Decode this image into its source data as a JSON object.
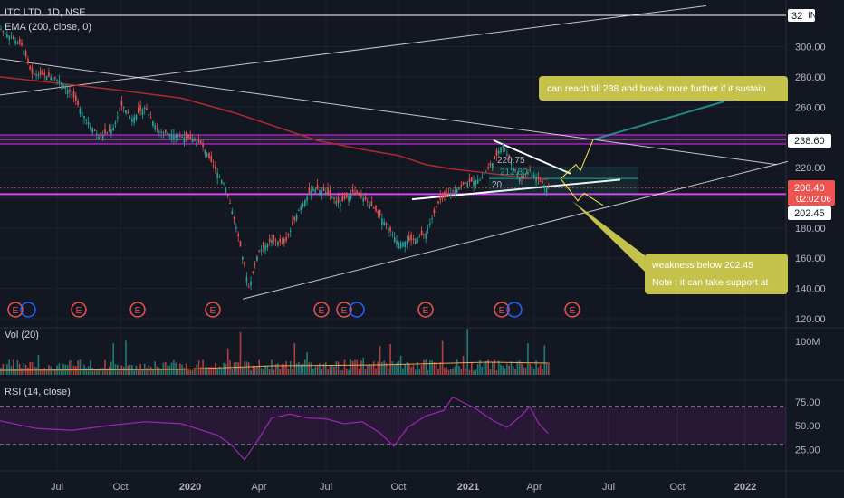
{
  "header": {
    "symbol": "ITC LTD, 1D, NSE",
    "indicator": "EMA (200, close, 0)",
    "currency": "INR"
  },
  "panes": {
    "volume_label": "Vol (20)",
    "volume_tick": "100M",
    "rsi_label": "RSI (14, close)"
  },
  "price_badges": {
    "top_clipped": "32",
    "resistance": "238.60",
    "last": "206.40",
    "countdown": "02:02:06",
    "support": "202.45"
  },
  "annotations": {
    "bullish_note": "can reach till 238 and break more further if it sustain",
    "bearish_line1": "weakness below 202.45",
    "bearish_line2": "Note : it can take support at",
    "box_high": "220.75",
    "box_mid": "212.80",
    "box_low": "20"
  },
  "colors": {
    "background": "#131722",
    "grid": "#1e2230",
    "candle_up": "#26a69a",
    "candle_down": "#ef5350",
    "ema": "#b2292e",
    "resistance_band": "#9c27b0",
    "support_line": "#e040fb",
    "note_box": "#c4c24a",
    "rsi": "#9c27b0",
    "arrow": "#ffeb3b"
  },
  "chart_data": [
    {
      "type": "candlestick",
      "title": "ITC LTD, 1D, NSE",
      "x_ticks": [
        "Jul",
        "Oct",
        "2020",
        "Apr",
        "Jul",
        "Oct",
        "2021",
        "Apr",
        "Jul",
        "Oct",
        "2022"
      ],
      "y_ticks": [
        120,
        140,
        160,
        180,
        200,
        220,
        240,
        260,
        280,
        300
      ],
      "ylim": [
        113,
        327
      ],
      "series": [
        {
          "name": "EMA (200, close, 0)",
          "points": [
            [
              0,
              280
            ],
            [
              60,
              276
            ],
            [
              120,
              272
            ],
            [
              200,
              266
            ],
            [
              260,
              256
            ],
            [
              310,
              246
            ],
            [
              350,
              238
            ],
            [
              400,
              232
            ],
            [
              440,
              228
            ],
            [
              470,
              222
            ],
            [
              500,
              219
            ],
            [
              530,
              217
            ],
            [
              570,
              214
            ],
            [
              605,
              212
            ]
          ]
        }
      ],
      "price_path": [
        [
          0,
          312
        ],
        [
          15,
          305
        ],
        [
          25,
          300
        ],
        [
          35,
          282
        ],
        [
          50,
          281
        ],
        [
          65,
          278
        ],
        [
          80,
          268
        ],
        [
          95,
          252
        ],
        [
          110,
          240
        ],
        [
          125,
          246
        ],
        [
          135,
          262
        ],
        [
          145,
          252
        ],
        [
          160,
          260
        ],
        [
          175,
          244
        ],
        [
          190,
          242
        ],
        [
          205,
          240
        ],
        [
          222,
          236
        ],
        [
          235,
          222
        ],
        [
          250,
          206
        ],
        [
          262,
          178
        ],
        [
          275,
          140
        ],
        [
          285,
          164
        ],
        [
          300,
          172
        ],
        [
          315,
          170
        ],
        [
          330,
          192
        ],
        [
          345,
          206
        ],
        [
          360,
          204
        ],
        [
          375,
          196
        ],
        [
          390,
          204
        ],
        [
          405,
          198
        ],
        [
          420,
          188
        ],
        [
          440,
          170
        ],
        [
          455,
          172
        ],
        [
          470,
          176
        ],
        [
          485,
          198
        ],
        [
          500,
          204
        ],
        [
          515,
          210
        ],
        [
          530,
          212
        ],
        [
          545,
          224
        ],
        [
          555,
          236
        ],
        [
          565,
          222
        ],
        [
          575,
          212
        ],
        [
          585,
          218
        ],
        [
          595,
          212
        ],
        [
          605,
          206.4
        ]
      ],
      "levels": {
        "resistance": 238.6,
        "support": 202.45,
        "last": 206.4,
        "box_high": 220.75,
        "box_mid": 212.8
      },
      "trend_lines": [
        [
          [
            0,
            292
          ],
          [
            858,
            222
          ]
        ],
        [
          [
            0,
            268
          ],
          [
            780,
            327
          ]
        ],
        [
          [
            268,
            133
          ],
          [
            870,
            224
          ]
        ],
        [
          [
            455,
            199
          ],
          [
            685,
            212
          ]
        ],
        [
          [
            545,
            238
          ],
          [
            630,
            216
          ]
        ]
      ],
      "projections": [
        {
          "direction": "up",
          "from": [
            625,
            214
          ],
          "to": [
            655,
            238
          ]
        },
        {
          "direction": "down",
          "from": [
            625,
            214
          ],
          "to": [
            665,
            195
          ]
        }
      ],
      "earnings_marker": "E"
    },
    {
      "type": "bar",
      "title": "Vol (20)",
      "y_ticks": [
        "100M"
      ]
    },
    {
      "type": "line",
      "title": "RSI (14, close)",
      "y_ticks": [
        25,
        50,
        75
      ],
      "ylim": [
        10,
        90
      ],
      "bands": [
        30,
        70
      ],
      "path": [
        [
          0,
          55
        ],
        [
          40,
          47
        ],
        [
          80,
          45
        ],
        [
          120,
          50
        ],
        [
          160,
          54
        ],
        [
          200,
          52
        ],
        [
          240,
          40
        ],
        [
          255,
          30
        ],
        [
          270,
          14
        ],
        [
          285,
          35
        ],
        [
          300,
          58
        ],
        [
          320,
          62
        ],
        [
          340,
          58
        ],
        [
          360,
          57
        ],
        [
          380,
          52
        ],
        [
          400,
          54
        ],
        [
          420,
          42
        ],
        [
          435,
          28
        ],
        [
          450,
          48
        ],
        [
          470,
          60
        ],
        [
          490,
          66
        ],
        [
          500,
          80
        ],
        [
          510,
          75
        ],
        [
          525,
          68
        ],
        [
          545,
          55
        ],
        [
          560,
          48
        ],
        [
          575,
          60
        ],
        [
          585,
          70
        ],
        [
          595,
          52
        ],
        [
          605,
          42
        ]
      ]
    }
  ]
}
